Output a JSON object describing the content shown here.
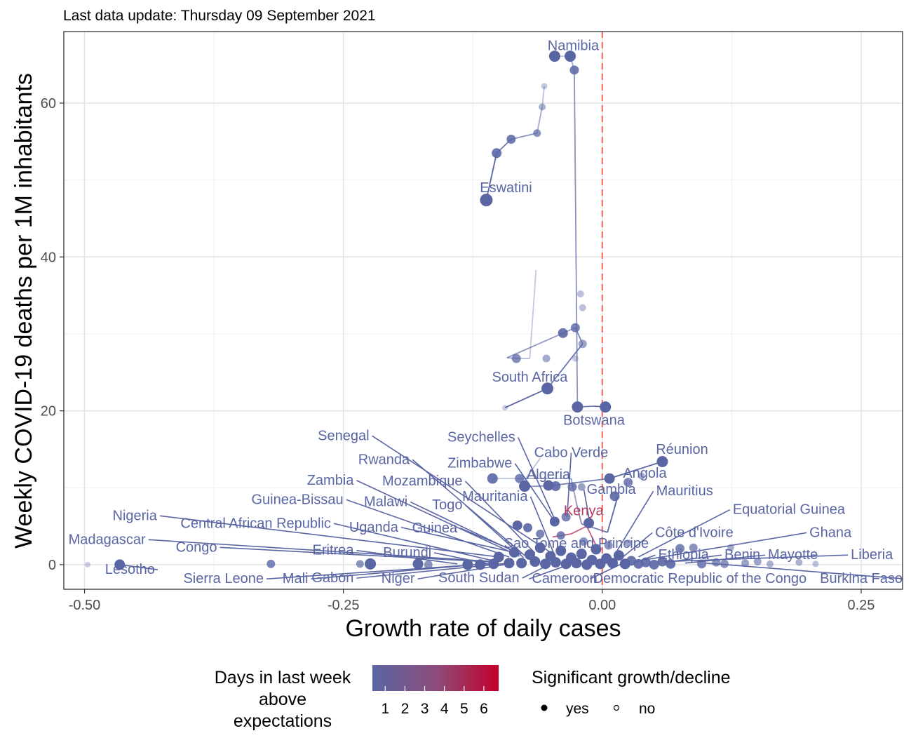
{
  "subtitle": "Last data update: Thursday 09 September 2021",
  "chart_data": {
    "type": "scatter",
    "xlabel": "Growth rate of daily cases",
    "ylabel": "Weekly COVID-19 deaths per 1M inhabitants",
    "xlim": [
      -0.52,
      0.29
    ],
    "ylim": [
      -3.2,
      69.3
    ],
    "x_ticks": [
      -0.5,
      -0.25,
      0.0,
      0.25
    ],
    "x_tick_labels": [
      "-0.50",
      "-0.25",
      "0.00",
      "0.25"
    ],
    "y_ticks": [
      0,
      20,
      40,
      60
    ],
    "y_tick_labels": [
      "0",
      "20",
      "40",
      "60"
    ],
    "grid": true,
    "reference_line": {
      "x": 0.0,
      "style": "dashed",
      "color": "#f07068"
    },
    "colors": {
      "low": "#5a65a4",
      "high": "#c4002a",
      "kenya": "#b53a5e"
    },
    "trails": [
      {
        "points": [
          [
            -0.056,
            62.2
          ],
          [
            -0.058,
            59.5
          ],
          [
            -0.063,
            56.1
          ],
          [
            -0.088,
            55.3
          ],
          [
            -0.102,
            53.5
          ],
          [
            -0.112,
            47.4
          ]
        ]
      },
      {
        "points": [
          [
            -0.046,
            66.1
          ],
          [
            -0.031,
            66.1
          ],
          [
            -0.027,
            64.3
          ],
          [
            -0.024,
            20.5
          ],
          [
            -0.008,
            20.6
          ],
          [
            0.003,
            20.5
          ]
        ]
      },
      {
        "points": [
          [
            -0.064,
            38.3
          ],
          [
            -0.07,
            26.8
          ],
          [
            -0.083,
            26.8
          ],
          [
            -0.092,
            26.9
          ],
          [
            -0.026,
            30.8
          ],
          [
            -0.019,
            28.7
          ],
          [
            -0.053,
            22.9
          ],
          [
            -0.094,
            20.4
          ]
        ]
      },
      {
        "points": [
          [
            -0.06,
            13.8
          ],
          [
            -0.074,
            11.2
          ],
          [
            -0.08,
            10.1
          ],
          [
            -0.048,
            10.3
          ],
          [
            0.007,
            11.2
          ],
          [
            0.058,
            13.4
          ]
        ]
      },
      {
        "points": [
          [
            -0.106,
            11.2
          ],
          [
            -0.08,
            11.2
          ],
          [
            -0.03,
            11.2
          ],
          [
            -0.025,
            8.0
          ],
          [
            -0.02,
            5.3
          ],
          [
            0.005,
            4.2
          ],
          [
            0.015,
            8.9
          ]
        ]
      }
    ],
    "points": [
      {
        "x": -0.112,
        "y": 47.4,
        "size": 9,
        "alpha": 1
      },
      {
        "x": -0.102,
        "y": 53.5,
        "size": 7,
        "alpha": 0.9
      },
      {
        "x": -0.088,
        "y": 55.3,
        "size": 6.5,
        "alpha": 0.85
      },
      {
        "x": -0.063,
        "y": 56.1,
        "size": 5.5,
        "alpha": 0.7
      },
      {
        "x": -0.058,
        "y": 59.5,
        "size": 5,
        "alpha": 0.5
      },
      {
        "x": -0.056,
        "y": 62.2,
        "size": 4.5,
        "alpha": 0.35
      },
      {
        "x": -0.046,
        "y": 66.1,
        "size": 8,
        "alpha": 1
      },
      {
        "x": -0.031,
        "y": 66.1,
        "size": 8,
        "alpha": 1
      },
      {
        "x": -0.027,
        "y": 64.3,
        "size": 6.5,
        "alpha": 0.85
      },
      {
        "x": -0.024,
        "y": 20.5,
        "size": 8,
        "alpha": 1
      },
      {
        "x": 0.003,
        "y": 20.5,
        "size": 8,
        "alpha": 1
      },
      {
        "x": -0.053,
        "y": 22.9,
        "size": 8.5,
        "alpha": 1
      },
      {
        "x": -0.038,
        "y": 30.1,
        "size": 7,
        "alpha": 0.9
      },
      {
        "x": -0.026,
        "y": 30.8,
        "size": 6.5,
        "alpha": 0.8
      },
      {
        "x": -0.019,
        "y": 28.7,
        "size": 6,
        "alpha": 0.6
      },
      {
        "x": -0.083,
        "y": 26.8,
        "size": 6.5,
        "alpha": 0.75
      },
      {
        "x": -0.054,
        "y": 26.8,
        "size": 5.5,
        "alpha": 0.55
      },
      {
        "x": -0.026,
        "y": 26.8,
        "size": 4.5,
        "alpha": 0.35
      },
      {
        "x": -0.094,
        "y": 20.4,
        "size": 4,
        "alpha": 0.3
      },
      {
        "x": -0.021,
        "y": 35.2,
        "size": 5,
        "alpha": 0.4
      },
      {
        "x": -0.019,
        "y": 33.4,
        "size": 5,
        "alpha": 0.4
      },
      {
        "x": 0.058,
        "y": 13.4,
        "size": 8,
        "alpha": 1
      },
      {
        "x": 0.007,
        "y": 11.2,
        "size": 7.5,
        "alpha": 1
      },
      {
        "x": 0.025,
        "y": 10.7,
        "size": 6.5,
        "alpha": 0.8
      },
      {
        "x": 0.038,
        "y": 11.5,
        "size": 5,
        "alpha": 0.5
      },
      {
        "x": -0.075,
        "y": 10.2,
        "size": 8,
        "alpha": 1
      },
      {
        "x": -0.052,
        "y": 10.3,
        "size": 7.5,
        "alpha": 1
      },
      {
        "x": -0.045,
        "y": 10.2,
        "size": 7,
        "alpha": 0.9
      },
      {
        "x": -0.029,
        "y": 10.1,
        "size": 6.5,
        "alpha": 0.8
      },
      {
        "x": -0.02,
        "y": 10.1,
        "size": 5.5,
        "alpha": 0.6
      },
      {
        "x": -0.106,
        "y": 11.2,
        "size": 7.5,
        "alpha": 0.9
      },
      {
        "x": -0.08,
        "y": 11.2,
        "size": 6.5,
        "alpha": 0.8
      },
      {
        "x": 0.012,
        "y": 8.9,
        "size": 7,
        "alpha": 0.9
      },
      {
        "x": -0.013,
        "y": 5.4,
        "size": 7.5,
        "alpha": 1
      },
      {
        "x": -0.046,
        "y": 5.6,
        "size": 7,
        "alpha": 1
      },
      {
        "x": -0.035,
        "y": 6.2,
        "size": 6.5,
        "alpha": 0.8
      },
      {
        "x": -0.082,
        "y": 5.1,
        "size": 7,
        "alpha": 1
      },
      {
        "x": -0.072,
        "y": 4.8,
        "size": 6.5,
        "alpha": 0.9
      },
      {
        "x": -0.06,
        "y": 4.0,
        "size": 6,
        "alpha": 0.8
      },
      {
        "x": -0.04,
        "y": 3.8,
        "size": 6,
        "alpha": 0.8
      },
      {
        "x": -0.018,
        "y": 3.0,
        "size": 6,
        "alpha": 0.7
      },
      {
        "x": 0.006,
        "y": 2.5,
        "size": 6,
        "alpha": 0.7
      },
      {
        "x": 0.025,
        "y": 2.8,
        "size": 5,
        "alpha": 0.6
      },
      {
        "x": -0.466,
        "y": 0.0,
        "size": 7.5,
        "alpha": 1
      },
      {
        "x": -0.497,
        "y": 0.0,
        "size": 4,
        "alpha": 0.3
      },
      {
        "x": -0.32,
        "y": 0.1,
        "size": 6,
        "alpha": 0.8
      },
      {
        "x": -0.234,
        "y": 0.1,
        "size": 5.5,
        "alpha": 0.7
      },
      {
        "x": -0.224,
        "y": 0.1,
        "size": 8,
        "alpha": 1
      },
      {
        "x": -0.178,
        "y": 0.1,
        "size": 7.5,
        "alpha": 1
      },
      {
        "x": -0.168,
        "y": 0.0,
        "size": 6,
        "alpha": 0.7
      },
      {
        "x": -0.13,
        "y": 0.0,
        "size": 7.5,
        "alpha": 1
      },
      {
        "x": -0.118,
        "y": 0.0,
        "size": 7.5,
        "alpha": 1
      },
      {
        "x": -0.105,
        "y": 0.1,
        "size": 7.5,
        "alpha": 1
      },
      {
        "x": -0.1,
        "y": 1.0,
        "size": 7.5,
        "alpha": 1
      },
      {
        "x": -0.09,
        "y": 0.2,
        "size": 7.5,
        "alpha": 1
      },
      {
        "x": -0.085,
        "y": 1.6,
        "size": 7.5,
        "alpha": 1
      },
      {
        "x": -0.078,
        "y": 0.2,
        "size": 7.5,
        "alpha": 1
      },
      {
        "x": -0.07,
        "y": 1.3,
        "size": 7.5,
        "alpha": 1
      },
      {
        "x": -0.065,
        "y": 0.4,
        "size": 7.5,
        "alpha": 1
      },
      {
        "x": -0.06,
        "y": 2.2,
        "size": 7.5,
        "alpha": 1
      },
      {
        "x": -0.055,
        "y": 0.1,
        "size": 7.5,
        "alpha": 1
      },
      {
        "x": -0.05,
        "y": 1.1,
        "size": 7.5,
        "alpha": 1
      },
      {
        "x": -0.045,
        "y": 0.3,
        "size": 7.5,
        "alpha": 1
      },
      {
        "x": -0.04,
        "y": 1.8,
        "size": 7.5,
        "alpha": 1
      },
      {
        "x": -0.035,
        "y": 0.1,
        "size": 7.5,
        "alpha": 1
      },
      {
        "x": -0.03,
        "y": 0.9,
        "size": 7.5,
        "alpha": 1
      },
      {
        "x": -0.025,
        "y": 0.2,
        "size": 7.5,
        "alpha": 1
      },
      {
        "x": -0.02,
        "y": 1.4,
        "size": 7.5,
        "alpha": 1
      },
      {
        "x": -0.015,
        "y": 0.0,
        "size": 7.5,
        "alpha": 1
      },
      {
        "x": -0.01,
        "y": 0.6,
        "size": 7.5,
        "alpha": 1
      },
      {
        "x": -0.006,
        "y": 2.0,
        "size": 7.5,
        "alpha": 1
      },
      {
        "x": -0.002,
        "y": 0.1,
        "size": 7.5,
        "alpha": 1
      },
      {
        "x": 0.004,
        "y": 0.8,
        "size": 7.5,
        "alpha": 1
      },
      {
        "x": 0.01,
        "y": 0.2,
        "size": 7.5,
        "alpha": 1
      },
      {
        "x": 0.016,
        "y": 1.2,
        "size": 7.5,
        "alpha": 1
      },
      {
        "x": 0.022,
        "y": 0.1,
        "size": 7.5,
        "alpha": 1
      },
      {
        "x": 0.028,
        "y": 0.5,
        "size": 7,
        "alpha": 0.9
      },
      {
        "x": 0.035,
        "y": 0.1,
        "size": 7,
        "alpha": 0.9
      },
      {
        "x": 0.042,
        "y": 0.3,
        "size": 7,
        "alpha": 0.9
      },
      {
        "x": 0.05,
        "y": 0.0,
        "size": 7,
        "alpha": 0.9
      },
      {
        "x": 0.058,
        "y": 0.4,
        "size": 7,
        "alpha": 0.9
      },
      {
        "x": 0.066,
        "y": 0.1,
        "size": 7,
        "alpha": 0.9
      },
      {
        "x": 0.075,
        "y": 2.1,
        "size": 6.5,
        "alpha": 0.8
      },
      {
        "x": 0.088,
        "y": 2.2,
        "size": 6,
        "alpha": 0.7
      },
      {
        "x": 0.096,
        "y": 0.1,
        "size": 6.5,
        "alpha": 0.8
      },
      {
        "x": 0.11,
        "y": 0.3,
        "size": 6,
        "alpha": 0.7
      },
      {
        "x": 0.118,
        "y": 0.1,
        "size": 6,
        "alpha": 0.7
      },
      {
        "x": 0.124,
        "y": 2.2,
        "size": 5,
        "alpha": 0.5
      },
      {
        "x": 0.138,
        "y": 0.2,
        "size": 5.5,
        "alpha": 0.6
      },
      {
        "x": 0.15,
        "y": 0.4,
        "size": 5.5,
        "alpha": 0.6
      },
      {
        "x": 0.162,
        "y": 0.1,
        "size": 5,
        "alpha": 0.5
      },
      {
        "x": 0.19,
        "y": 0.3,
        "size": 5,
        "alpha": 0.5
      },
      {
        "x": 0.206,
        "y": 0.1,
        "size": 4.5,
        "alpha": 0.4
      }
    ],
    "kenya_trail": [
      [
        -0.048,
        3.6
      ],
      [
        -0.03,
        4.0
      ],
      [
        -0.015,
        5.0
      ],
      [
        -0.005,
        2.2
      ]
    ],
    "labels": [
      {
        "text": "Namibia",
        "x": -0.028,
        "y": 66.9,
        "anchor": "middle"
      },
      {
        "text": "Eswatini",
        "x": -0.093,
        "y": 48.4,
        "anchor": "middle"
      },
      {
        "text": "South Africa",
        "x": -0.07,
        "y": 23.8,
        "anchor": "middle"
      },
      {
        "text": "Botswana",
        "x": -0.008,
        "y": 18.2,
        "anchor": "middle"
      },
      {
        "text": "Senegal",
        "x": -0.225,
        "y": 16.2,
        "anchor": "end",
        "to": [
          -0.05,
          1.6
        ]
      },
      {
        "text": "Seychelles",
        "x": -0.084,
        "y": 16.0,
        "anchor": "end",
        "to": [
          -0.045,
          5.6
        ]
      },
      {
        "text": "Cabo Verde",
        "x": -0.03,
        "y": 14.0,
        "anchor": "middle",
        "to": [
          -0.034,
          6.2
        ]
      },
      {
        "text": "Réunion",
        "x": 0.077,
        "y": 14.4,
        "anchor": "middle"
      },
      {
        "text": "Rwanda",
        "x": -0.186,
        "y": 13.1,
        "anchor": "end",
        "to": [
          -0.075,
          1.2
        ]
      },
      {
        "text": "Zimbabwe",
        "x": -0.087,
        "y": 12.6,
        "anchor": "end",
        "to": [
          -0.045,
          5.4
        ]
      },
      {
        "text": "Angola",
        "x": 0.02,
        "y": 11.3,
        "anchor": "start"
      },
      {
        "text": "Algeria",
        "x": -0.052,
        "y": 11.1,
        "anchor": "middle"
      },
      {
        "text": "Zambia",
        "x": -0.24,
        "y": 10.4,
        "anchor": "end",
        "to": [
          -0.08,
          1.1
        ]
      },
      {
        "text": "Mozambique",
        "x": -0.135,
        "y": 10.3,
        "anchor": "end",
        "to": [
          -0.065,
          1.5
        ]
      },
      {
        "text": "Gambia",
        "x": -0.015,
        "y": 9.2,
        "anchor": "start",
        "to": [
          -0.012,
          5.4
        ]
      },
      {
        "text": "Mauritius",
        "x": 0.052,
        "y": 9.0,
        "anchor": "start",
        "to": [
          0.012,
          1.3
        ]
      },
      {
        "text": "Guinea-Bissau",
        "x": -0.25,
        "y": 7.9,
        "anchor": "end",
        "to": [
          -0.09,
          1.0
        ]
      },
      {
        "text": "Mauritania",
        "x": -0.072,
        "y": 8.3,
        "anchor": "end",
        "to": [
          -0.046,
          1.2
        ]
      },
      {
        "text": "Malawi",
        "x": -0.188,
        "y": 7.6,
        "anchor": "end",
        "to": [
          -0.085,
          1.7
        ]
      },
      {
        "text": "Togo",
        "x": -0.135,
        "y": 7.2,
        "anchor": "end",
        "to": [
          -0.076,
          0.9
        ]
      },
      {
        "text": "Kenya",
        "x": -0.018,
        "y": 6.4,
        "anchor": "middle",
        "kenya": true
      },
      {
        "text": "Equatorial Guinea",
        "x": 0.126,
        "y": 6.6,
        "anchor": "start",
        "to": [
          0.035,
          1.0
        ]
      },
      {
        "text": "Nigeria",
        "x": -0.43,
        "y": 5.8,
        "anchor": "end",
        "to": [
          -0.1,
          1.0
        ]
      },
      {
        "text": "Central African Republic",
        "x": -0.262,
        "y": 4.8,
        "anchor": "end",
        "to": [
          -0.105,
          0.5
        ]
      },
      {
        "text": "Uganda",
        "x": -0.197,
        "y": 4.3,
        "anchor": "end",
        "to": [
          -0.082,
          1.5
        ]
      },
      {
        "text": "Guinea",
        "x": -0.14,
        "y": 4.2,
        "anchor": "end",
        "to": [
          -0.078,
          1.4
        ]
      },
      {
        "text": "Côte d'Ivoire",
        "x": 0.051,
        "y": 3.6,
        "anchor": "start",
        "to": [
          0.02,
          1.0
        ]
      },
      {
        "text": "Ghana",
        "x": 0.2,
        "y": 3.6,
        "anchor": "start",
        "to": [
          0.04,
          0.6
        ]
      },
      {
        "text": "Madagascar",
        "x": -0.441,
        "y": 2.7,
        "anchor": "end",
        "to": [
          -0.105,
          0.4
        ]
      },
      {
        "text": "Sao Tome and Principe",
        "x": -0.025,
        "y": 2.2,
        "anchor": "middle"
      },
      {
        "text": "Congo",
        "x": -0.372,
        "y": 1.7,
        "anchor": "end",
        "to": [
          -0.1,
          0.3
        ]
      },
      {
        "text": "Eritrea",
        "x": -0.24,
        "y": 1.3,
        "anchor": "end",
        "to": [
          -0.14,
          0.1
        ]
      },
      {
        "text": "Burundi",
        "x": -0.165,
        "y": 1.0,
        "anchor": "end",
        "to": [
          -0.11,
          0.1
        ]
      },
      {
        "text": "Ethiopia",
        "x": 0.054,
        "y": 0.7,
        "anchor": "start",
        "to": [
          0.03,
          0.2
        ]
      },
      {
        "text": "Benin",
        "x": 0.118,
        "y": 0.7,
        "anchor": "start",
        "to": [
          0.06,
          0.3
        ]
      },
      {
        "text": "Mayotte",
        "x": 0.16,
        "y": 0.7,
        "anchor": "start",
        "to": [
          0.08,
          0.2
        ]
      },
      {
        "text": "Liberia",
        "x": 0.24,
        "y": 0.7,
        "anchor": "start",
        "to": [
          0.06,
          0.4
        ]
      },
      {
        "text": "Lesotho",
        "x": -0.432,
        "y": -1.2,
        "anchor": "end",
        "to": [
          -0.466,
          0.0
        ]
      },
      {
        "text": "Sierra Leone",
        "x": -0.327,
        "y": -2.4,
        "anchor": "end",
        "to": [
          -0.11,
          0.1
        ]
      },
      {
        "text": "Mali",
        "x": -0.284,
        "y": -2.4,
        "anchor": "end",
        "to": [
          -0.105,
          0.2
        ]
      },
      {
        "text": "Gabon",
        "x": -0.24,
        "y": -2.3,
        "anchor": "end",
        "to": [
          -0.09,
          0.2
        ]
      },
      {
        "text": "Niger",
        "x": -0.181,
        "y": -2.4,
        "anchor": "end",
        "to": [
          -0.09,
          0.1
        ]
      },
      {
        "text": "South Sudan",
        "x": -0.08,
        "y": -2.3,
        "anchor": "end",
        "to": [
          -0.05,
          0.1
        ]
      },
      {
        "text": "Cameroon",
        "x": -0.068,
        "y": -2.4,
        "anchor": "start",
        "to": [
          -0.03,
          0.1
        ]
      },
      {
        "text": "Democratic Republic of the Congo",
        "x": -0.009,
        "y": -2.4,
        "anchor": "start",
        "to": [
          0.02,
          0.2
        ]
      },
      {
        "text": "Burkina Faso",
        "x": 0.29,
        "y": -2.4,
        "anchor": "end",
        "to": [
          0.1,
          0.2
        ]
      }
    ]
  },
  "legend": {
    "color_title_lines": [
      "Days in last week",
      "above",
      "expectations"
    ],
    "color_ticks": [
      "1",
      "2",
      "3",
      "4",
      "5",
      "6"
    ],
    "shape_title": "Significant growth/decline",
    "shape_items": [
      "yes",
      "no"
    ]
  }
}
